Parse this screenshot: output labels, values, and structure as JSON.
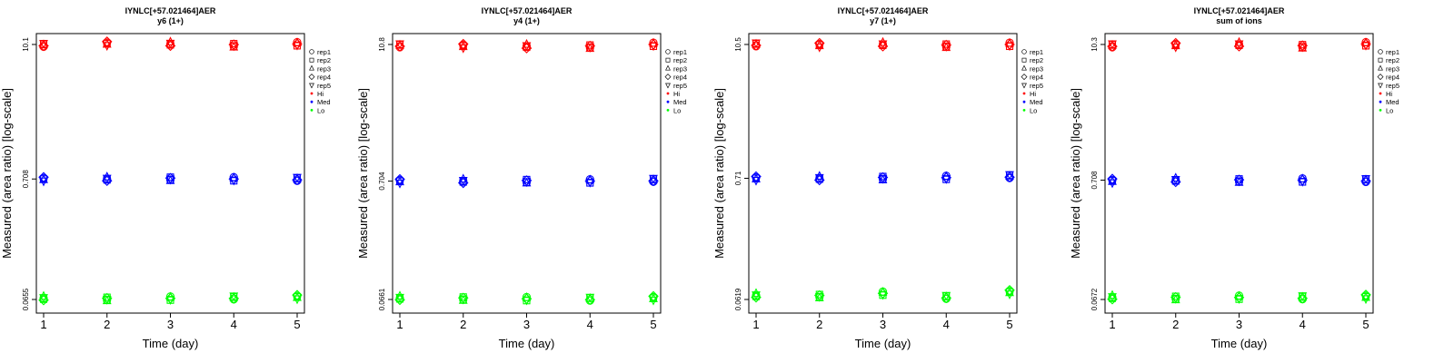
{
  "chart_data": [
    {
      "type": "scatter",
      "title": "IYNLC[+57.021464]AER",
      "subtitle": "y6 (1+)",
      "xlabel": "Time (day)",
      "ylabel": "Measured (area ratio) [log-scale]",
      "x_ticks": [
        "1",
        "2",
        "3",
        "4",
        "5"
      ],
      "y_ticks": [
        "0.0655",
        "0.708",
        "10.1"
      ],
      "legend": [
        "rep1",
        "rep2",
        "rep3",
        "rep4",
        "rep5",
        "Hi",
        "Med",
        "Lo"
      ],
      "legend_position": "right",
      "colors": {
        "Hi": "#ff0000",
        "Med": "#0000ff",
        "Lo": "#00ff00"
      },
      "series": [
        {
          "name": "Hi",
          "points": [
            [
              1,
              10.0
            ],
            [
              2,
              10.3
            ],
            [
              3,
              10.2
            ],
            [
              4,
              9.9
            ],
            [
              5,
              10.2
            ]
          ]
        },
        {
          "name": "Med",
          "points": [
            [
              1,
              0.708
            ],
            [
              2,
              0.708
            ],
            [
              3,
              0.708
            ],
            [
              4,
              0.708
            ],
            [
              5,
              0.708
            ]
          ]
        },
        {
          "name": "Lo",
          "points": [
            [
              1,
              0.067
            ],
            [
              2,
              0.066
            ],
            [
              3,
              0.067
            ],
            [
              4,
              0.068
            ],
            [
              5,
              0.069
            ]
          ]
        }
      ]
    },
    {
      "type": "scatter",
      "title": "IYNLC[+57.021464]AER",
      "subtitle": "y4 (1+)",
      "xlabel": "Time (day)",
      "ylabel": "Measured (area ratio) [log-scale]",
      "x_ticks": [
        "1",
        "2",
        "3",
        "4",
        "5"
      ],
      "y_ticks": [
        "0.0661",
        "0.704",
        "10.8"
      ],
      "legend": [
        "rep1",
        "rep2",
        "rep3",
        "rep4",
        "rep5",
        "Hi",
        "Med",
        "Lo"
      ],
      "legend_position": "right",
      "colors": {
        "Hi": "#ff0000",
        "Med": "#0000ff",
        "Lo": "#00ff00"
      },
      "series": [
        {
          "name": "Hi",
          "points": [
            [
              1,
              10.6
            ],
            [
              2,
              10.5
            ],
            [
              3,
              10.4
            ],
            [
              4,
              10.3
            ],
            [
              5,
              10.8
            ]
          ]
        },
        {
          "name": "Med",
          "points": [
            [
              1,
              0.704
            ],
            [
              2,
              0.704
            ],
            [
              3,
              0.7
            ],
            [
              4,
              0.704
            ],
            [
              5,
              0.72
            ]
          ]
        },
        {
          "name": "Lo",
          "points": [
            [
              1,
              0.068
            ],
            [
              2,
              0.067
            ],
            [
              3,
              0.067
            ],
            [
              4,
              0.067
            ],
            [
              5,
              0.068
            ]
          ]
        }
      ]
    },
    {
      "type": "scatter",
      "title": "IYNLC[+57.021464]AER",
      "subtitle": "y7 (1+)",
      "xlabel": "Time (day)",
      "ylabel": "Measured (area ratio) [log-scale]",
      "x_ticks": [
        "1",
        "2",
        "3",
        "4",
        "5"
      ],
      "y_ticks": [
        "0.0619",
        "0.71",
        "10.5"
      ],
      "legend": [
        "rep1",
        "rep2",
        "rep3",
        "rep4",
        "rep5",
        "Hi",
        "Med",
        "Lo"
      ],
      "legend_position": "right",
      "colors": {
        "Hi": "#ff0000",
        "Med": "#0000ff",
        "Lo": "#00ff00"
      },
      "series": [
        {
          "name": "Hi",
          "points": [
            [
              1,
              10.5
            ],
            [
              2,
              10.4
            ],
            [
              3,
              10.5
            ],
            [
              4,
              10.2
            ],
            [
              5,
              10.5
            ]
          ]
        },
        {
          "name": "Med",
          "points": [
            [
              1,
              0.71
            ],
            [
              2,
              0.71
            ],
            [
              3,
              0.71
            ],
            [
              4,
              0.72
            ],
            [
              5,
              0.74
            ]
          ]
        },
        {
          "name": "Lo",
          "points": [
            [
              1,
              0.067
            ],
            [
              2,
              0.066
            ],
            [
              3,
              0.07
            ],
            [
              4,
              0.065
            ],
            [
              5,
              0.072
            ]
          ]
        }
      ]
    },
    {
      "type": "scatter",
      "title": "IYNLC[+57.021464]AER",
      "subtitle": "sum of ions",
      "xlabel": "Time (day)",
      "ylabel": "Measured (area ratio) [log-scale]",
      "x_ticks": [
        "1",
        "2",
        "3",
        "4",
        "5"
      ],
      "y_ticks": [
        "0.0672",
        "0.708",
        "10.3"
      ],
      "legend": [
        "rep1",
        "rep2",
        "rep3",
        "rep4",
        "rep5",
        "Hi",
        "Med",
        "Lo"
      ],
      "legend_position": "right",
      "colors": {
        "Hi": "#ff0000",
        "Med": "#0000ff",
        "Lo": "#00ff00"
      },
      "series": [
        {
          "name": "Hi",
          "points": [
            [
              1,
              10.1
            ],
            [
              2,
              10.2
            ],
            [
              3,
              10.3
            ],
            [
              4,
              9.9
            ],
            [
              5,
              10.4
            ]
          ]
        },
        {
          "name": "Med",
          "points": [
            [
              1,
              0.7
            ],
            [
              2,
              0.708
            ],
            [
              3,
              0.7
            ],
            [
              4,
              0.708
            ],
            [
              5,
              0.708
            ]
          ]
        },
        {
          "name": "Lo",
          "points": [
            [
              1,
              0.07
            ],
            [
              2,
              0.069
            ],
            [
              3,
              0.07
            ],
            [
              4,
              0.07
            ],
            [
              5,
              0.071
            ]
          ]
        }
      ]
    }
  ]
}
